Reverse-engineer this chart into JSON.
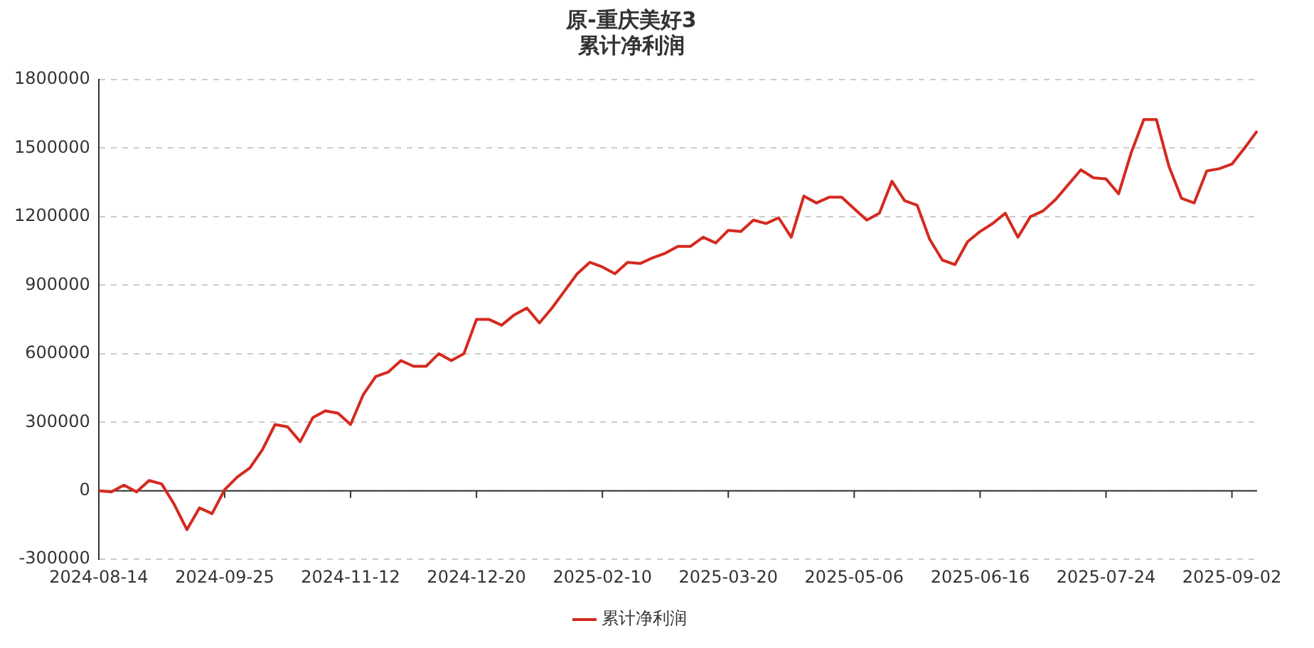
{
  "chart_data": {
    "type": "line",
    "title": [
      "原-重庆美好3",
      "累计净利润"
    ],
    "categories": [
      "2024-08-14",
      null,
      null,
      null,
      null,
      null,
      null,
      null,
      null,
      null,
      "2024-09-25",
      null,
      null,
      null,
      null,
      null,
      null,
      null,
      null,
      null,
      "2024-11-12",
      null,
      null,
      null,
      null,
      null,
      null,
      null,
      null,
      null,
      "2024-12-20",
      null,
      null,
      null,
      null,
      null,
      null,
      null,
      null,
      null,
      "2025-02-10",
      null,
      null,
      null,
      null,
      null,
      null,
      null,
      null,
      null,
      "2025-03-20",
      null,
      null,
      null,
      null,
      null,
      null,
      null,
      null,
      null,
      "2025-05-06",
      null,
      null,
      null,
      null,
      null,
      null,
      null,
      null,
      null,
      "2025-06-16",
      null,
      null,
      null,
      null,
      null,
      null,
      null,
      null,
      null,
      "2025-07-24",
      null,
      null,
      null,
      null,
      null,
      null,
      null,
      null,
      null,
      "2025-09-02",
      null,
      null
    ],
    "series": [
      {
        "name": "累计净利润",
        "color": "#d42a1f",
        "values": [
          0,
          -5000,
          25000,
          -5000,
          45000,
          30000,
          -60000,
          -170000,
          -75000,
          -100000,
          5000,
          60000,
          100000,
          180000,
          290000,
          280000,
          215000,
          320000,
          350000,
          340000,
          290000,
          420000,
          500000,
          520000,
          570000,
          545000,
          545000,
          600000,
          570000,
          600000,
          750000,
          750000,
          725000,
          770000,
          800000,
          735000,
          800000,
          875000,
          950000,
          1000000,
          980000,
          950000,
          1000000,
          995000,
          1020000,
          1040000,
          1070000,
          1070000,
          1110000,
          1085000,
          1140000,
          1135000,
          1185000,
          1170000,
          1195000,
          1110000,
          1290000,
          1260000,
          1285000,
          1285000,
          1235000,
          1185000,
          1215000,
          1355000,
          1270000,
          1250000,
          1100000,
          1010000,
          990000,
          1090000,
          1135000,
          1170000,
          1215000,
          1110000,
          1200000,
          1225000,
          1275000,
          1340000,
          1405000,
          1370000,
          1365000,
          1300000,
          1480000,
          1625000,
          1625000,
          1420000,
          1280000,
          1260000,
          1400000,
          1410000,
          1430000,
          1500000,
          1575000
        ]
      }
    ],
    "ylim": [
      -300000,
      1800000
    ],
    "yticks": [
      -300000,
      0,
      300000,
      600000,
      900000,
      1200000,
      1500000,
      1800000
    ],
    "grid": "y",
    "legend": "bottom",
    "marker": "none",
    "line_style": "solid"
  }
}
